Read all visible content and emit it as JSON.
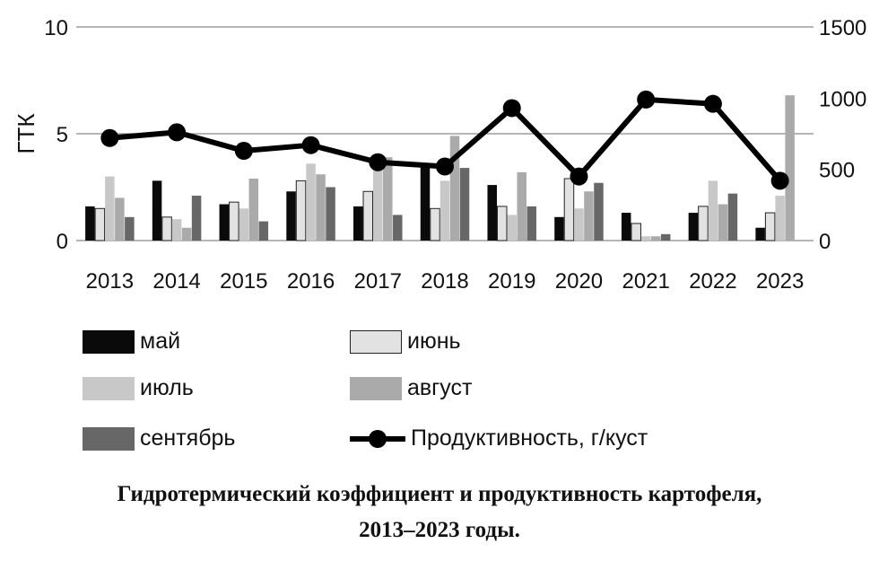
{
  "chart_data": {
    "type": "bar",
    "categories": [
      "2013",
      "2014",
      "2015",
      "2016",
      "2017",
      "2018",
      "2019",
      "2020",
      "2021",
      "2022",
      "2023"
    ],
    "series": [
      {
        "name": "май",
        "color": "#0a0a0a",
        "values": [
          1.6,
          2.8,
          1.7,
          2.3,
          1.6,
          3.5,
          2.6,
          1.1,
          1.3,
          1.3,
          0.6
        ]
      },
      {
        "name": "июнь",
        "color": "#e2e2e2",
        "outline": "#222222",
        "values": [
          1.5,
          1.1,
          1.8,
          2.8,
          2.3,
          1.5,
          1.6,
          2.9,
          0.8,
          1.6,
          1.3
        ]
      },
      {
        "name": "июль",
        "color": "#c8c8c8",
        "values": [
          3.0,
          1.0,
          1.5,
          3.6,
          3.8,
          2.8,
          1.2,
          1.5,
          0.2,
          2.8,
          2.1
        ]
      },
      {
        "name": "август",
        "color": "#aaaaaa",
        "values": [
          2.0,
          0.6,
          2.9,
          3.1,
          3.9,
          4.9,
          3.2,
          2.3,
          0.2,
          1.7,
          6.8
        ]
      },
      {
        "name": "сентябрь",
        "color": "#676767",
        "values": [
          1.1,
          2.1,
          0.9,
          2.5,
          1.2,
          3.4,
          1.6,
          2.7,
          0.3,
          2.2,
          null
        ]
      }
    ],
    "line": {
      "name": "Продуктивность, г/куст",
      "color": "#000000",
      "values": [
        720,
        760,
        630,
        670,
        550,
        520,
        930,
        450,
        990,
        960,
        420
      ]
    },
    "y_left": {
      "label": "ГТК",
      "lim": [
        0,
        10
      ],
      "ticks": [
        "0",
        "5",
        "10"
      ]
    },
    "y_right": {
      "lim": [
        0,
        1500
      ],
      "ticks": [
        "0",
        "500",
        "1000",
        "1500"
      ]
    },
    "grid": "horizontal"
  },
  "caption": {
    "line1": "Гидротермический коэффициент и продуктивность картофеля,",
    "line2": "2013–2023 годы."
  }
}
